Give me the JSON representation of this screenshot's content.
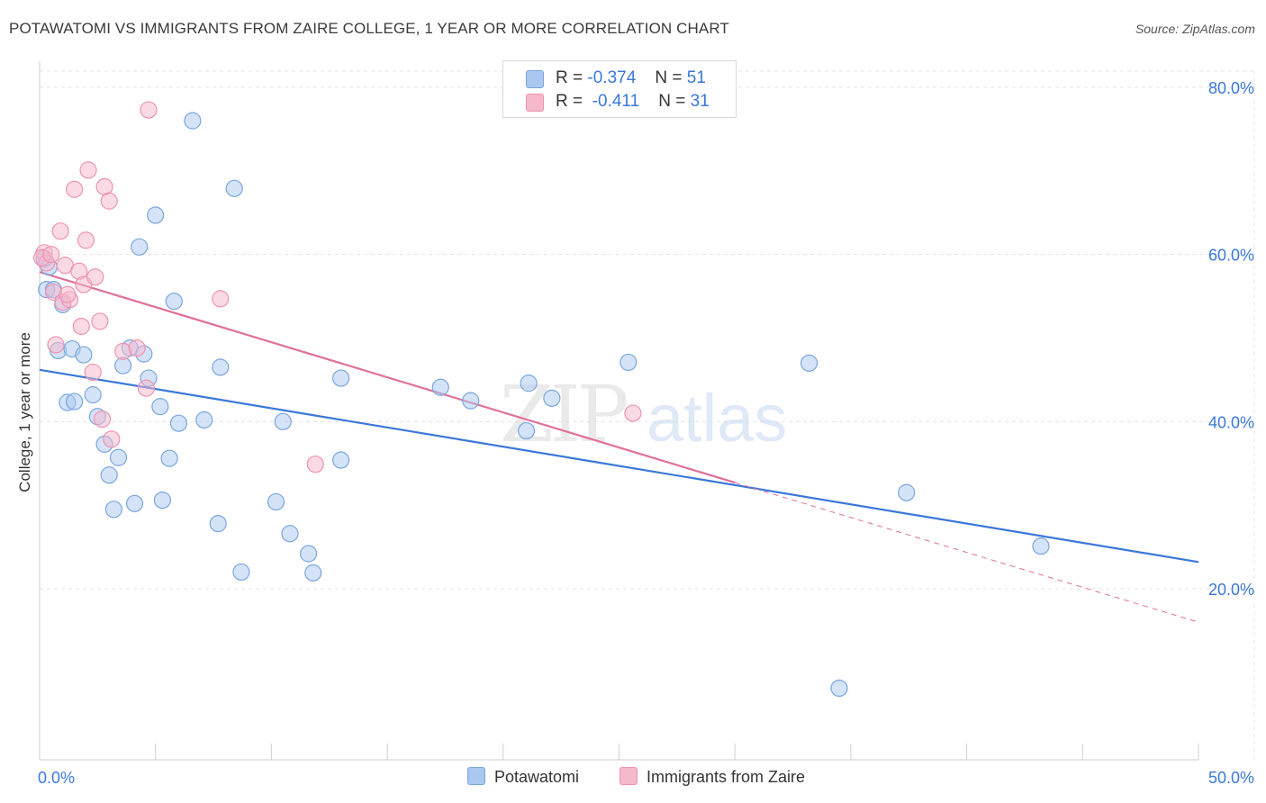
{
  "title": "POTAWATOMI VS IMMIGRANTS FROM ZAIRE COLLEGE, 1 YEAR OR MORE CORRELATION CHART",
  "source": "Source: ZipAtlas.com",
  "watermark": {
    "zip": "ZIP",
    "atlas": "atlas"
  },
  "legend": {
    "rows": [
      {
        "r_label": "R =",
        "r_value": "-0.374",
        "n_label": "N =",
        "n_value": "51"
      },
      {
        "r_label": "R =",
        "r_value": "-0.411",
        "n_label": "N =",
        "n_value": "31"
      }
    ]
  },
  "bottom_legend": {
    "series1": "Potawatomi",
    "series2": "Immigrants from Zaire"
  },
  "colors": {
    "blue_fill": "#a9c7ef",
    "blue_stroke": "#7aa6df",
    "blue_line": "#3a78d8",
    "pink_fill": "#f6b8cb",
    "pink_stroke": "#ee93b0",
    "pink_line": "#e0709a",
    "grid": "#e3e3e3",
    "axis_label": "#3a78d8"
  },
  "chart_data": {
    "type": "scatter",
    "title": "POTAWATOMI VS IMMIGRANTS FROM ZAIRE COLLEGE, 1 YEAR OR MORE CORRELATION CHART",
    "xlabel": "",
    "ylabel": "College, 1 year or more",
    "xlim": [
      0,
      50
    ],
    "ylim": [
      0,
      83
    ],
    "x_tick_labels": [
      "0.0%",
      "50.0%"
    ],
    "y_ticks": [
      20,
      40,
      60,
      80
    ],
    "y_tick_labels": [
      "20.0%",
      "40.0%",
      "60.0%",
      "80.0%"
    ],
    "series": [
      {
        "name": "Potawatomi",
        "color": "#a9c7ef",
        "points": [
          [
            0.2,
            59.5
          ],
          [
            0.4,
            58.5
          ],
          [
            0.3,
            55.8
          ],
          [
            0.6,
            55.8
          ],
          [
            1.0,
            54.0
          ],
          [
            0.8,
            48.5
          ],
          [
            1.4,
            48.7
          ],
          [
            1.9,
            48.0
          ],
          [
            1.2,
            42.3
          ],
          [
            1.5,
            42.4
          ],
          [
            2.3,
            43.2
          ],
          [
            2.5,
            40.6
          ],
          [
            2.8,
            37.3
          ],
          [
            3.0,
            33.6
          ],
          [
            3.2,
            29.5
          ],
          [
            3.4,
            35.7
          ],
          [
            3.6,
            46.7
          ],
          [
            3.9,
            48.8
          ],
          [
            4.1,
            30.2
          ],
          [
            4.3,
            60.9
          ],
          [
            4.5,
            48.1
          ],
          [
            4.7,
            45.2
          ],
          [
            5.0,
            64.7
          ],
          [
            5.2,
            41.8
          ],
          [
            5.3,
            30.6
          ],
          [
            5.6,
            35.6
          ],
          [
            5.8,
            54.4
          ],
          [
            6.0,
            39.8
          ],
          [
            6.6,
            76.0
          ],
          [
            7.1,
            40.2
          ],
          [
            7.7,
            27.8
          ],
          [
            7.8,
            46.5
          ],
          [
            8.4,
            67.9
          ],
          [
            8.7,
            22.0
          ],
          [
            10.2,
            30.4
          ],
          [
            10.5,
            40.0
          ],
          [
            10.8,
            26.6
          ],
          [
            11.6,
            24.2
          ],
          [
            11.8,
            21.9
          ],
          [
            13.0,
            45.2
          ],
          [
            13.0,
            35.4
          ],
          [
            17.3,
            44.1
          ],
          [
            18.6,
            42.5
          ],
          [
            21.0,
            38.9
          ],
          [
            21.1,
            44.6
          ],
          [
            22.1,
            42.8
          ],
          [
            25.4,
            47.1
          ],
          [
            33.2,
            47.0
          ],
          [
            34.5,
            8.1
          ],
          [
            37.4,
            31.5
          ],
          [
            43.2,
            25.1
          ]
        ]
      },
      {
        "name": "Immigrants from Zaire",
        "color": "#f6b8cb",
        "points": [
          [
            0.2,
            60.2
          ],
          [
            0.3,
            59.0
          ],
          [
            0.6,
            55.5
          ],
          [
            0.7,
            49.2
          ],
          [
            0.9,
            62.8
          ],
          [
            1.0,
            54.3
          ],
          [
            1.1,
            58.7
          ],
          [
            1.3,
            54.6
          ],
          [
            1.5,
            67.8
          ],
          [
            1.7,
            58.0
          ],
          [
            1.8,
            51.4
          ],
          [
            1.9,
            56.4
          ],
          [
            2.0,
            61.7
          ],
          [
            2.1,
            70.1
          ],
          [
            2.3,
            45.9
          ],
          [
            2.4,
            57.3
          ],
          [
            2.6,
            52.0
          ],
          [
            2.7,
            40.3
          ],
          [
            2.8,
            68.1
          ],
          [
            3.0,
            66.4
          ],
          [
            3.1,
            37.9
          ],
          [
            3.6,
            48.4
          ],
          [
            4.2,
            48.8
          ],
          [
            4.6,
            44.0
          ],
          [
            4.7,
            77.3
          ],
          [
            7.8,
            54.7
          ],
          [
            11.9,
            34.9
          ],
          [
            25.6,
            41.0
          ],
          [
            0.1,
            59.6
          ],
          [
            0.5,
            60.0
          ],
          [
            1.2,
            55.2
          ]
        ]
      }
    ],
    "trend_lines": [
      {
        "series": "Potawatomi",
        "x": [
          0,
          50
        ],
        "y": [
          46.2,
          23.2
        ],
        "style": "solid"
      },
      {
        "series": "Immigrants from Zaire",
        "x": [
          0,
          30
        ],
        "y": [
          57.9,
          32.7
        ],
        "style": "solid"
      },
      {
        "series": "Immigrants from Zaire",
        "x": [
          30,
          50
        ],
        "y": [
          32.7,
          16.0
        ],
        "style": "dashed"
      }
    ]
  }
}
